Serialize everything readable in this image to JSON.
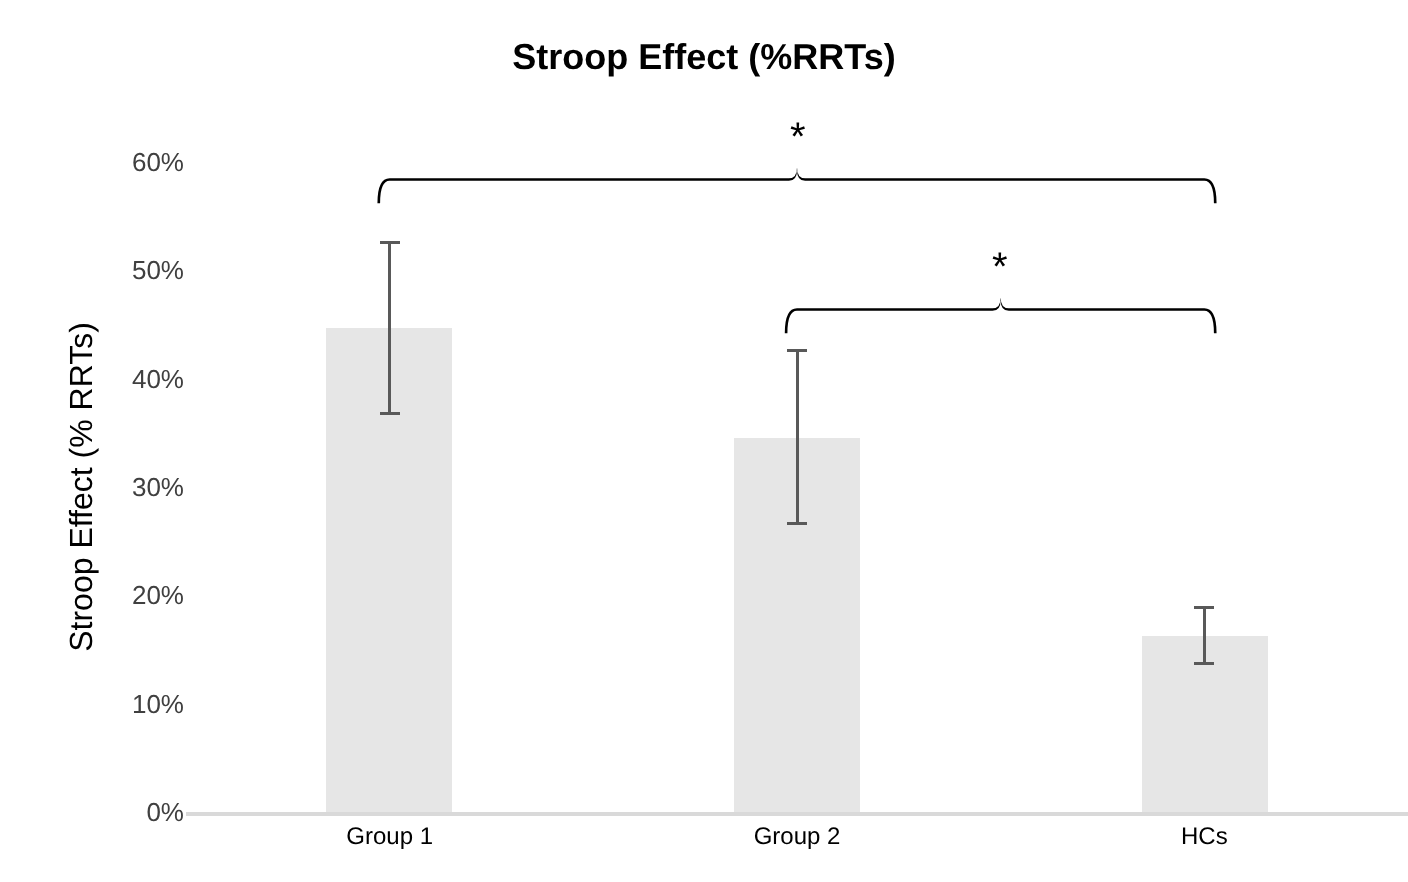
{
  "chart_data": {
    "type": "bar",
    "title": "Stroop Effect (%RRTs)",
    "ylabel": "Stroop Effect (% RRTs)",
    "categories": [
      "Group 1",
      "Group 2",
      "HCs"
    ],
    "values": [
      44.7,
      34.6,
      16.3
    ],
    "errors": [
      7.9,
      8.0,
      2.6
    ],
    "color": "#e6e6e6",
    "ylim": [
      0,
      60
    ],
    "yticks": [
      {
        "value": 0,
        "label": "0%"
      },
      {
        "value": 10,
        "label": "10%"
      },
      {
        "value": 20,
        "label": "20%"
      },
      {
        "value": 30,
        "label": "30%"
      },
      {
        "value": 40,
        "label": "40%"
      },
      {
        "value": 50,
        "label": "50%"
      },
      {
        "value": 60,
        "label": "60%"
      }
    ],
    "annotations": [
      "*",
      "*"
    ]
  }
}
